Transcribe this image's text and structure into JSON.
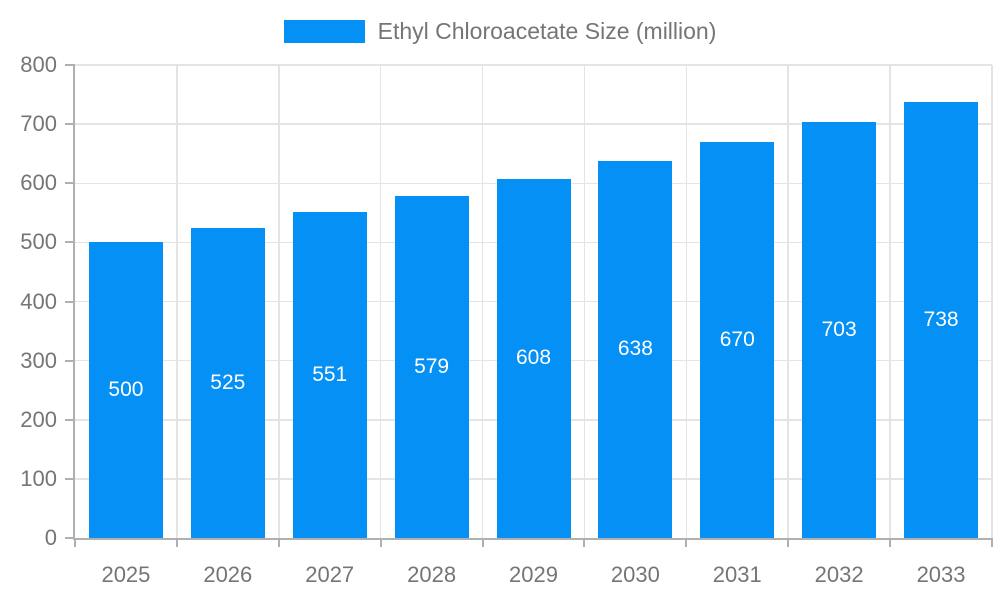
{
  "chart_data": {
    "type": "bar",
    "title": "",
    "categories": [
      "2025",
      "2026",
      "2027",
      "2028",
      "2029",
      "2030",
      "2031",
      "2032",
      "2033"
    ],
    "series": [
      {
        "name": "Ethyl Chloroacetate Size (million)",
        "values": [
          500,
          525,
          551,
          579,
          608,
          638,
          670,
          703,
          738
        ]
      }
    ],
    "xlabel": "",
    "ylabel": "",
    "ylim": [
      0,
      800
    ],
    "ytick_step": 100,
    "yticks": [
      0,
      100,
      200,
      300,
      400,
      500,
      600,
      700,
      800
    ],
    "grid": true,
    "legend_position": "top",
    "bar_value_labels": "inside-center"
  },
  "colors": {
    "bar": "#0590f5",
    "bar_value_label": "#ffffff",
    "axis_text": "#757575",
    "legend_text": "#757575",
    "grid_line": "#e4e4e4",
    "axis_line": "#b0b0b0",
    "background": "#ffffff"
  }
}
